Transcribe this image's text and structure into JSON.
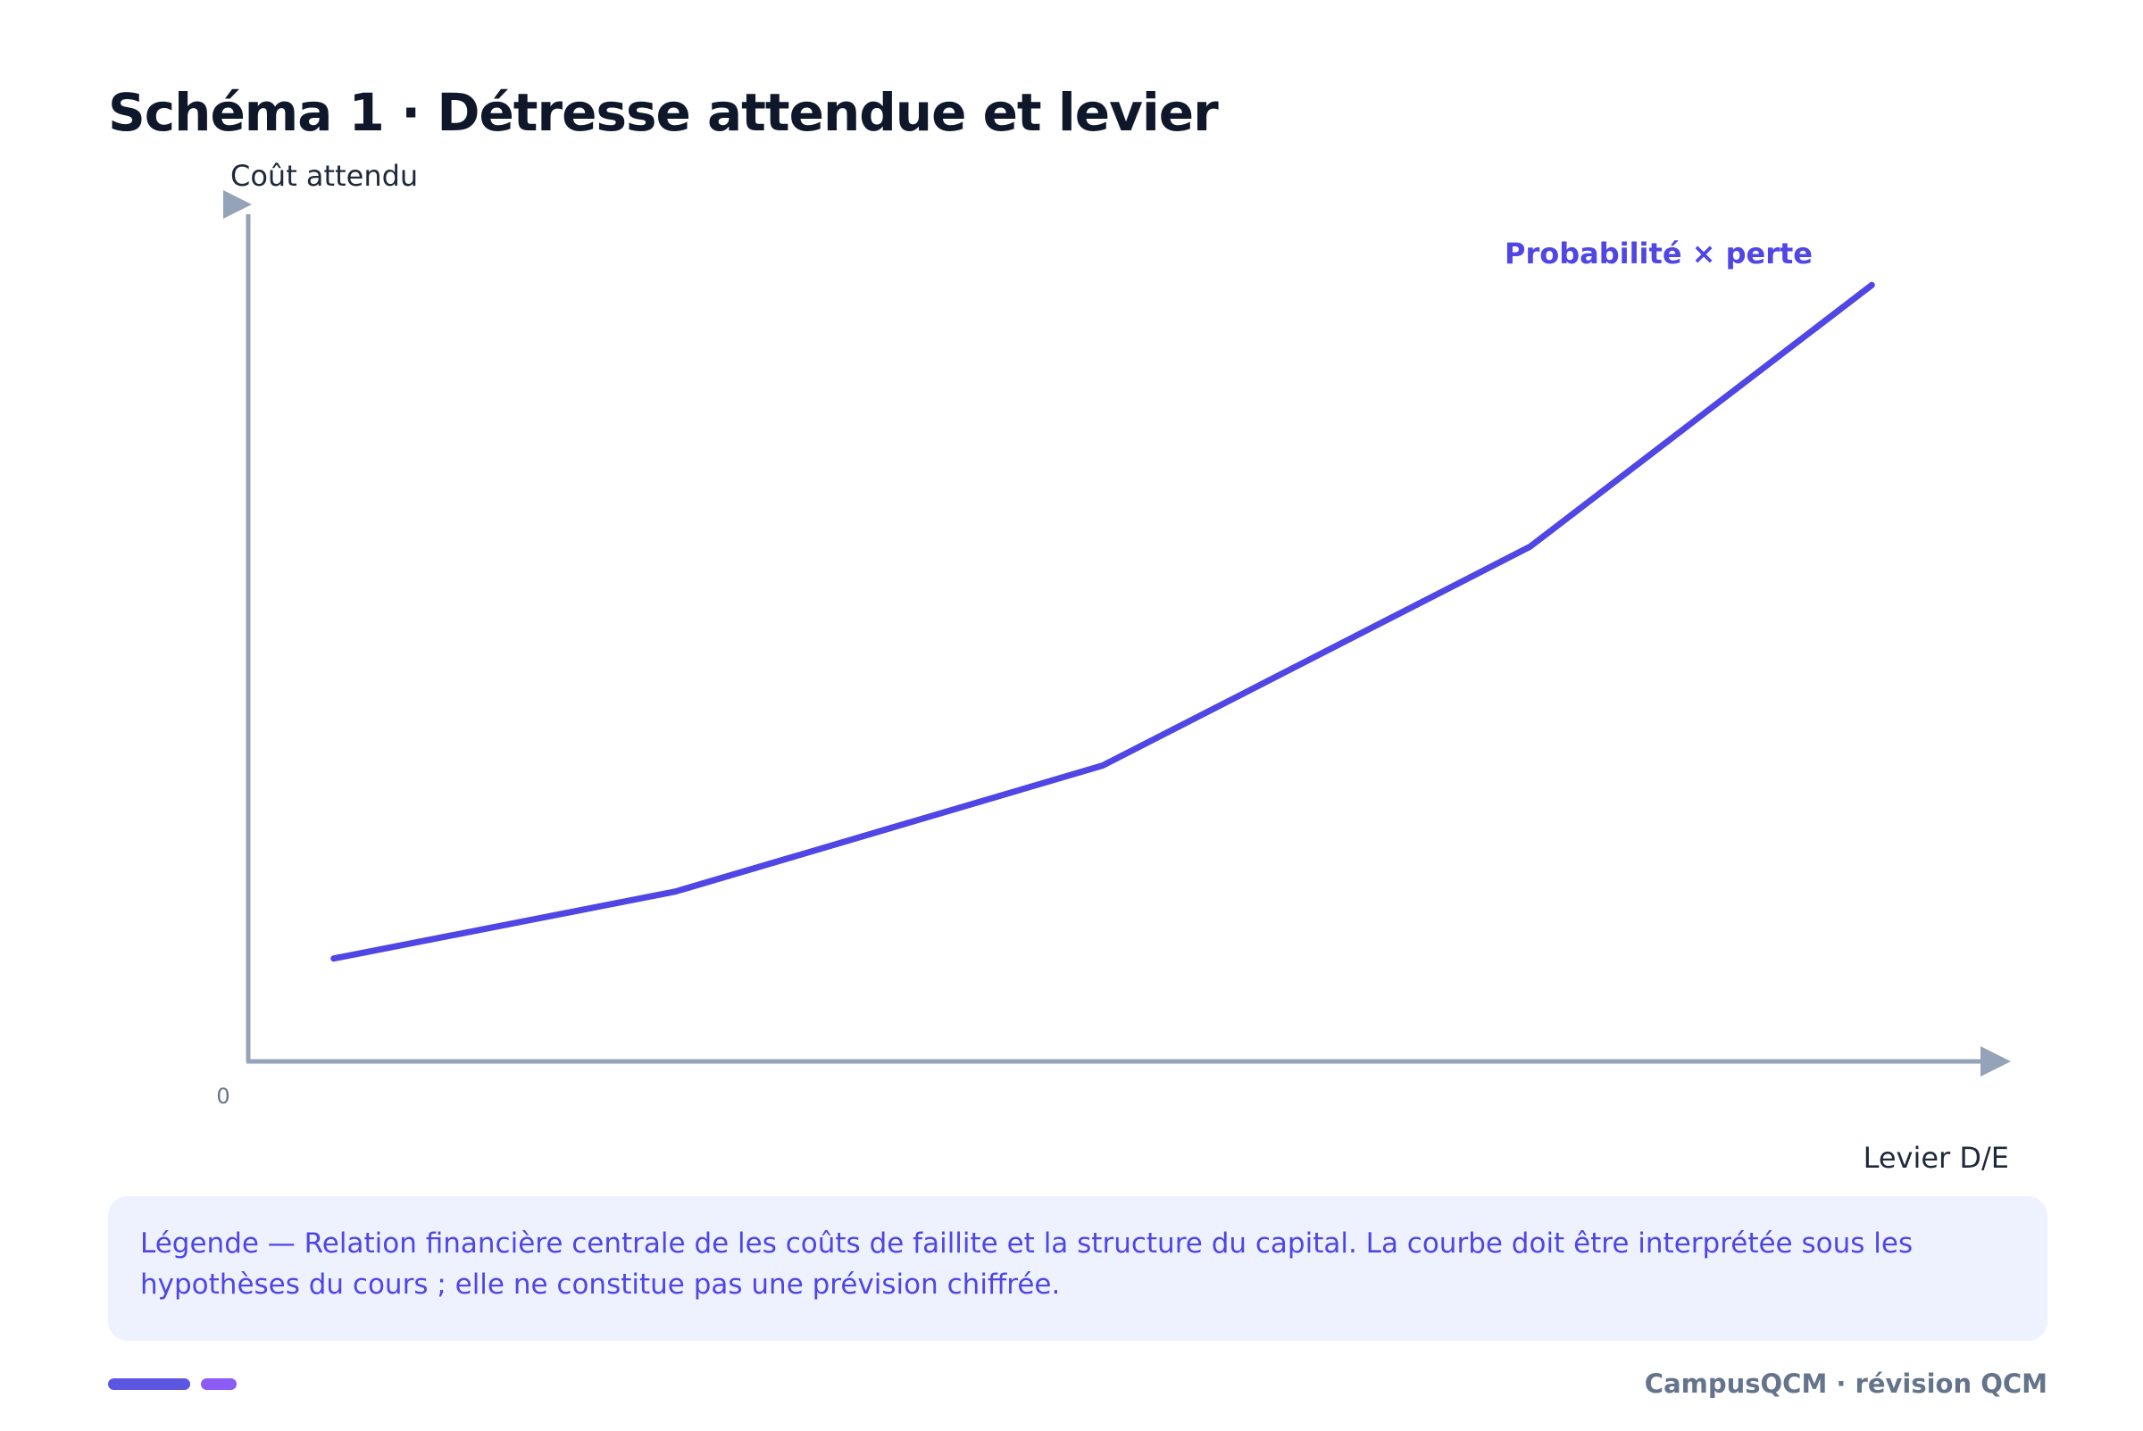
{
  "page": {
    "title": "Schéma 1 · Détresse attendue et levier",
    "caption": "Légende — Relation financière centrale de les coûts de faillite et la structure du capital. La courbe doit être interprétée sous les hypothèses du cours ; elle ne constitue pas une prévision chiffrée.",
    "footer_brand": "CampusQCM · révision QCM"
  },
  "colors": {
    "series": "#4f46e5",
    "axis": "#94a3b8",
    "title": "#0f172a",
    "caption_bg": "#eef2ff"
  },
  "chart_data": {
    "type": "line",
    "title": "Schéma 1 · Détresse attendue et levier",
    "xlabel": "Levier D/E",
    "ylabel": "Coût attendu",
    "origin_label": "0",
    "xlim": [
      0,
      100
    ],
    "ylim": [
      0,
      100
    ],
    "grid": false,
    "legend": "none",
    "series": [
      {
        "name": "Probabilité × perte",
        "x": [
          5,
          25,
          50,
          75,
          95
        ],
        "y": [
          12,
          19.8,
          34.5,
          60,
          90.5
        ]
      }
    ]
  }
}
